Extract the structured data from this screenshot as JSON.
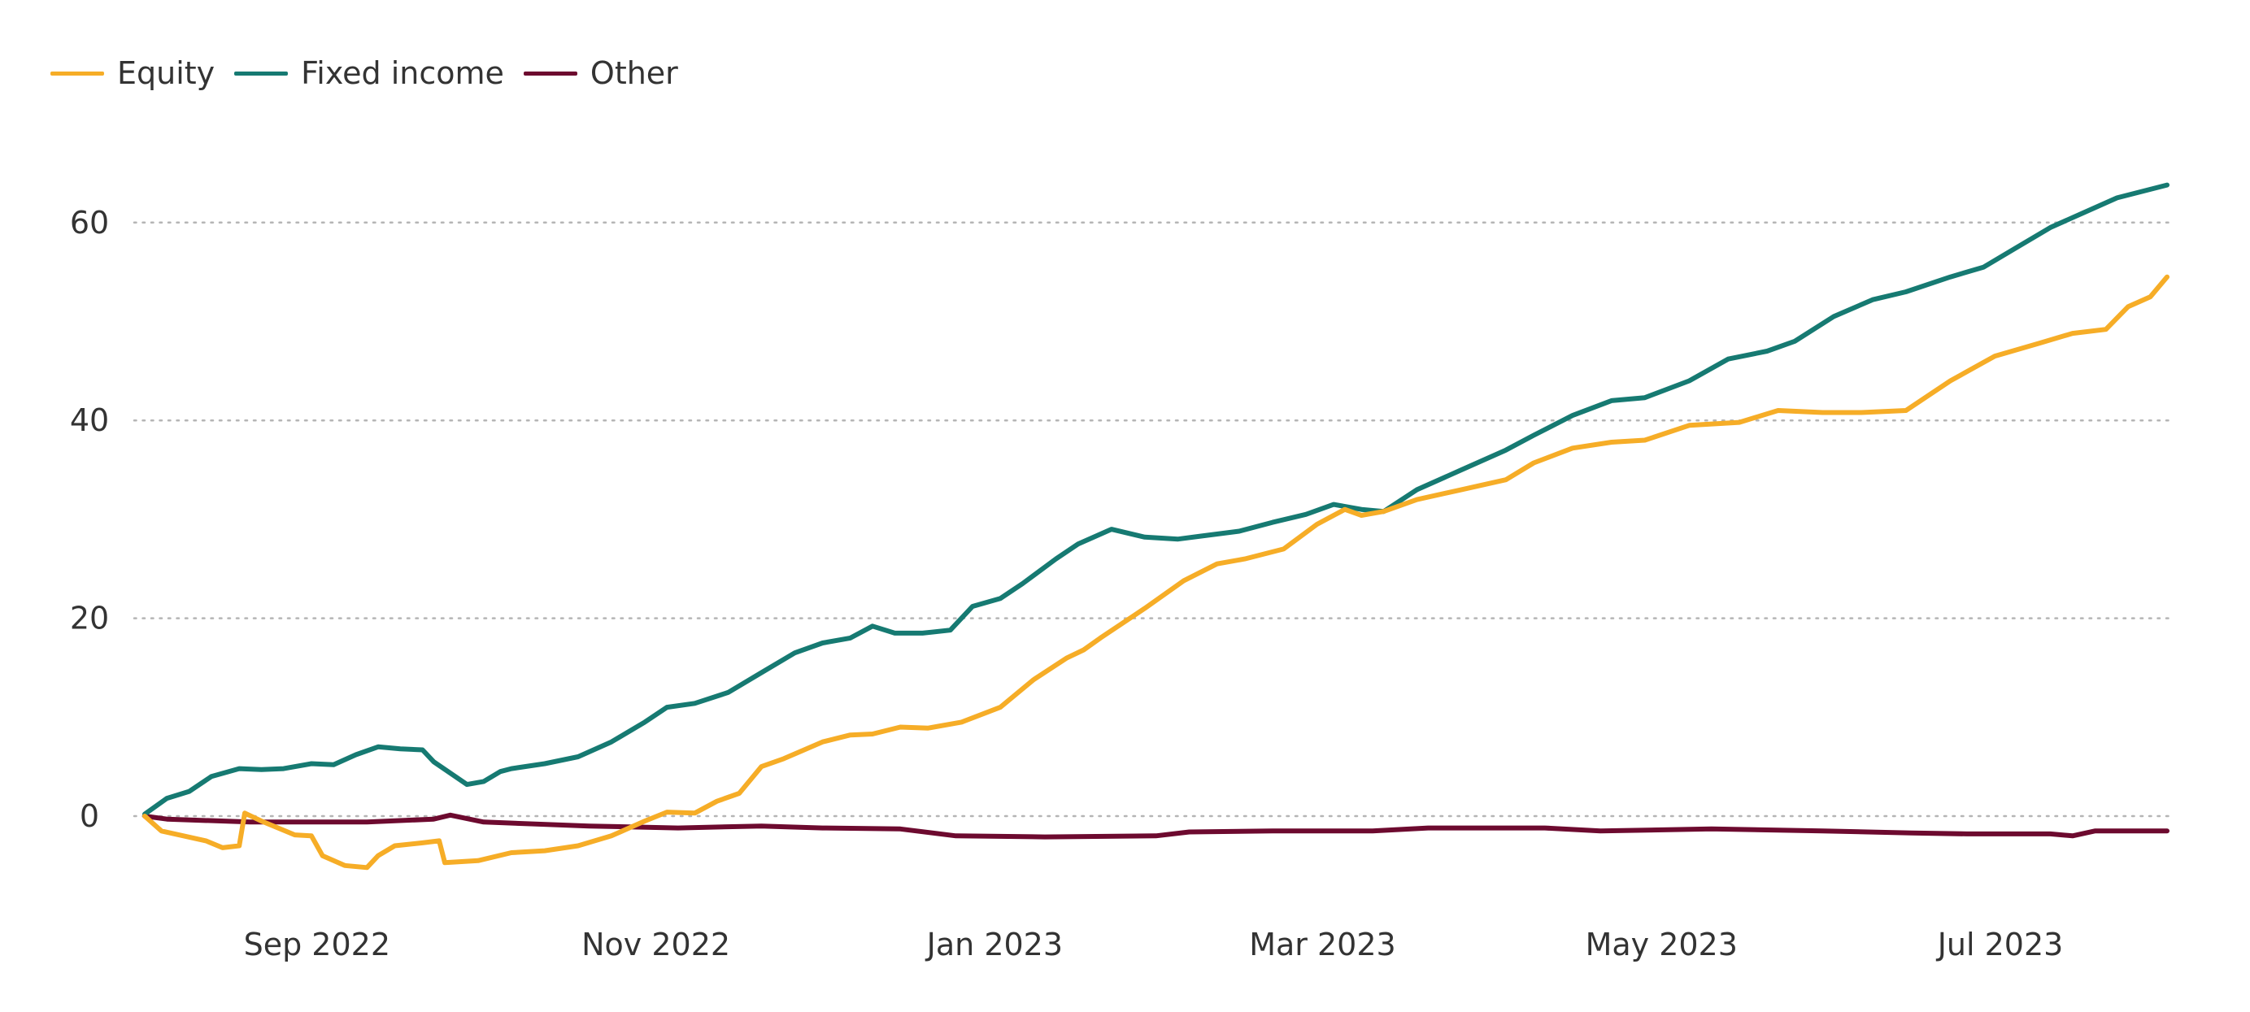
{
  "colors": {
    "Equity": "#f6ad27",
    "Fixed income": "#167a72",
    "Other": "#6d0a2f",
    "grid": "#b5b5b5",
    "text": "#333333"
  },
  "chart_data": {
    "type": "line",
    "title": "",
    "xlabel": "",
    "ylabel": "",
    "grid": true,
    "legend_position": "top-left",
    "xlim": [
      "2022-08-01",
      "2023-07-31"
    ],
    "ylim": [
      -9,
      67
    ],
    "y_ticks": [
      0,
      20,
      40,
      60
    ],
    "y_tick_labels": [
      "0",
      "20",
      "40",
      "60"
    ],
    "x_tick_dates": [
      "2022-09-01",
      "2022-11-01",
      "2023-01-01",
      "2023-03-01",
      "2023-05-01",
      "2023-07-01"
    ],
    "x_tick_labels": [
      "Sep 2022",
      "Nov 2022",
      "Jan 2023",
      "Mar 2023",
      "May 2023",
      "Jul 2023"
    ],
    "series": [
      {
        "name": "Equity",
        "x": [
          "2022-08-01",
          "2022-08-04",
          "2022-08-12",
          "2022-08-15",
          "2022-08-18",
          "2022-08-19",
          "2022-08-22",
          "2022-08-28",
          "2022-08-31",
          "2022-09-02",
          "2022-09-06",
          "2022-09-10",
          "2022-09-12",
          "2022-09-15",
          "2022-09-20",
          "2022-09-23",
          "2022-09-24",
          "2022-09-30",
          "2022-10-06",
          "2022-10-12",
          "2022-10-18",
          "2022-10-24",
          "2022-10-30",
          "2022-11-03",
          "2022-11-08",
          "2022-11-12",
          "2022-11-16",
          "2022-11-20",
          "2022-11-24",
          "2022-12-01",
          "2022-12-06",
          "2022-12-10",
          "2022-12-15",
          "2022-12-20",
          "2022-12-26",
          "2023-01-02",
          "2023-01-08",
          "2023-01-14",
          "2023-01-17",
          "2023-01-20",
          "2023-01-28",
          "2023-02-04",
          "2023-02-10",
          "2023-02-15",
          "2023-02-22",
          "2023-02-28",
          "2023-03-05",
          "2023-03-08",
          "2023-03-12",
          "2023-03-18",
          "2023-03-26",
          "2023-04-03",
          "2023-04-08",
          "2023-04-15",
          "2023-04-22",
          "2023-04-28",
          "2023-05-06",
          "2023-05-15",
          "2023-05-22",
          "2023-05-30",
          "2023-06-06",
          "2023-06-14",
          "2023-06-22",
          "2023-06-30",
          "2023-07-08",
          "2023-07-14",
          "2023-07-20",
          "2023-07-24",
          "2023-07-28",
          "2023-07-31"
        ],
        "y": [
          0,
          -1.5,
          -2.5,
          -3.2,
          -3,
          0.3,
          -0.5,
          -1.9,
          -2,
          -4,
          -5,
          -5.2,
          -4,
          -3,
          -2.7,
          -2.5,
          -4.7,
          -4.5,
          -3.7,
          -3.5,
          -3,
          -2,
          -0.5,
          0.4,
          0.3,
          1.5,
          2.3,
          5,
          5.8,
          7.5,
          8.2,
          8.3,
          9,
          8.9,
          9.5,
          11,
          13.8,
          16,
          16.8,
          18,
          21,
          23.8,
          25.5,
          26,
          27,
          29.5,
          31,
          30.4,
          30.8,
          32,
          33,
          34,
          35.7,
          37.2,
          37.8,
          38,
          39.5,
          39.8,
          41,
          40.8,
          40.8,
          41,
          44,
          46.5,
          47.8,
          48.8,
          49.2,
          51.5,
          52.5,
          54.5
        ]
      },
      {
        "name": "Fixed income",
        "x": [
          "2022-08-01",
          "2022-08-05",
          "2022-08-09",
          "2022-08-13",
          "2022-08-18",
          "2022-08-22",
          "2022-08-26",
          "2022-08-31",
          "2022-09-04",
          "2022-09-08",
          "2022-09-12",
          "2022-09-16",
          "2022-09-20",
          "2022-09-22",
          "2022-09-28",
          "2022-10-01",
          "2022-10-04",
          "2022-10-06",
          "2022-10-12",
          "2022-10-18",
          "2022-10-24",
          "2022-10-30",
          "2022-11-03",
          "2022-11-08",
          "2022-11-14",
          "2022-11-20",
          "2022-11-26",
          "2022-12-01",
          "2022-12-06",
          "2022-12-10",
          "2022-12-14",
          "2022-12-19",
          "2022-12-24",
          "2022-12-28",
          "2023-01-02",
          "2023-01-06",
          "2023-01-12",
          "2023-01-16",
          "2023-01-22",
          "2023-01-28",
          "2023-02-03",
          "2023-02-07",
          "2023-02-14",
          "2023-02-20",
          "2023-02-26",
          "2023-03-03",
          "2023-03-08",
          "2023-03-12",
          "2023-03-18",
          "2023-03-26",
          "2023-04-03",
          "2023-04-08",
          "2023-04-15",
          "2023-04-22",
          "2023-04-28",
          "2023-05-06",
          "2023-05-13",
          "2023-05-20",
          "2023-05-25",
          "2023-06-01",
          "2023-06-08",
          "2023-06-14",
          "2023-06-22",
          "2023-06-28",
          "2023-07-04",
          "2023-07-10",
          "2023-07-16",
          "2023-07-22",
          "2023-07-31"
        ],
        "y": [
          0.2,
          1.8,
          2.5,
          4.0,
          4.8,
          4.7,
          4.8,
          5.3,
          5.2,
          6.2,
          7.0,
          6.8,
          6.7,
          5.5,
          3.2,
          3.5,
          4.5,
          4.8,
          5.3,
          6.0,
          7.5,
          9.5,
          11.0,
          11.4,
          12.5,
          14.5,
          16.5,
          17.5,
          18.0,
          19.2,
          18.5,
          18.5,
          18.8,
          21.2,
          22.0,
          23.5,
          26.0,
          27.5,
          29.0,
          28.2,
          28.0,
          28.3,
          28.8,
          29.7,
          30.5,
          31.5,
          31.0,
          30.8,
          33.0,
          35.0,
          37.0,
          38.5,
          40.5,
          42.0,
          42.3,
          44.0,
          46.2,
          47.0,
          48.0,
          50.5,
          52.2,
          53.0,
          54.5,
          55.5,
          57.5,
          59.5,
          61.0,
          62.5,
          63.8
        ]
      },
      {
        "name": "Other",
        "x": [
          "2022-08-01",
          "2022-08-05",
          "2022-08-20",
          "2022-09-10",
          "2022-09-22",
          "2022-09-25",
          "2022-10-01",
          "2022-10-20",
          "2022-11-05",
          "2022-11-20",
          "2022-12-01",
          "2022-12-15",
          "2022-12-25",
          "2023-01-10",
          "2023-01-30",
          "2023-02-05",
          "2023-02-20",
          "2023-03-10",
          "2023-03-20",
          "2023-04-10",
          "2023-04-20",
          "2023-05-10",
          "2023-05-30",
          "2023-06-15",
          "2023-06-25",
          "2023-07-10",
          "2023-07-14",
          "2023-07-18",
          "2023-07-31"
        ],
        "y": [
          0,
          -0.3,
          -0.6,
          -0.6,
          -0.3,
          0.1,
          -0.6,
          -1.0,
          -1.2,
          -1.0,
          -1.2,
          -1.3,
          -2.0,
          -2.1,
          -2.0,
          -1.6,
          -1.5,
          -1.5,
          -1.2,
          -1.2,
          -1.5,
          -1.3,
          -1.5,
          -1.7,
          -1.8,
          -1.8,
          -2.0,
          -1.5,
          -1.5
        ]
      }
    ]
  }
}
